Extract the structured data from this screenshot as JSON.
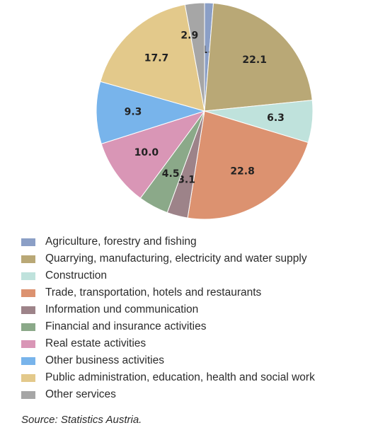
{
  "chart_data": {
    "type": "pie",
    "start_angle_deg": 0,
    "direction": "clockwise",
    "slices": [
      {
        "label": "Agriculture, forestry and fishing",
        "value": 1.3,
        "value_label": "1.3",
        "color": "#8b9fc6"
      },
      {
        "label": "Quarrying, manufacturing, electricity and water supply",
        "value": 22.1,
        "value_label": "22.1",
        "color": "#b9a876"
      },
      {
        "label": "Construction",
        "value": 6.3,
        "value_label": "6.3",
        "color": "#bfe2dc"
      },
      {
        "label": "Trade, transportation, hotels and restaurants",
        "value": 22.8,
        "value_label": "22.8",
        "color": "#dc9270"
      },
      {
        "label": "Information und communication",
        "value": 3.1,
        "value_label": "3.1",
        "color": "#9d8389"
      },
      {
        "label": "Financial and insurance activities",
        "value": 4.5,
        "value_label": "4.5",
        "color": "#8ba989"
      },
      {
        "label": "Real estate activities",
        "value": 10.0,
        "value_label": "10.0",
        "color": "#d996b6"
      },
      {
        "label": "Other business activities",
        "value": 9.3,
        "value_label": "9.3",
        "color": "#78b4eb"
      },
      {
        "label": "Public administration, education, health and social work",
        "value": 17.7,
        "value_label": "17.7",
        "color": "#e3c98b"
      },
      {
        "label": "Other services",
        "value": 2.9,
        "value_label": "2.9",
        "color": "#a6a6a6"
      }
    ],
    "legend_position": "bottom"
  },
  "source_note": "Source: Statistics Austria."
}
